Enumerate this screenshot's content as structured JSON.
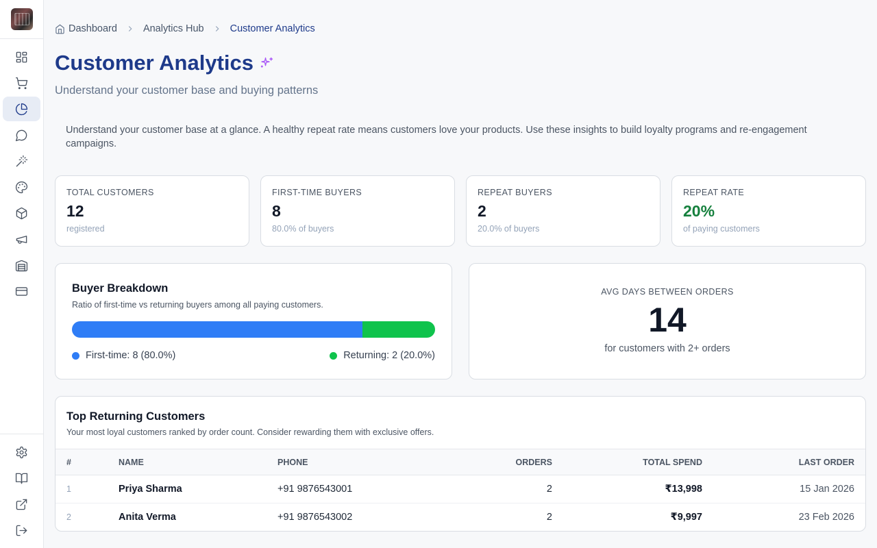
{
  "breadcrumb": {
    "items": [
      "Dashboard",
      "Analytics Hub"
    ],
    "current": "Customer Analytics"
  },
  "page": {
    "title": "Customer Analytics",
    "subtitle": "Understand your customer base and buying patterns",
    "info": "Understand your customer base at a glance. A healthy repeat rate means customers love your products. Use these insights to build loyalty programs and re-engagement campaigns."
  },
  "stats": [
    {
      "label": "Total Customers",
      "value": "12",
      "sub": "registered"
    },
    {
      "label": "First-Time Buyers",
      "value": "8",
      "sub": "80.0% of buyers"
    },
    {
      "label": "Repeat Buyers",
      "value": "2",
      "sub": "20.0% of buyers"
    },
    {
      "label": "Repeat Rate",
      "value": "20%",
      "sub": "of paying customers",
      "value_color": "#15803d"
    }
  ],
  "buyer_breakdown": {
    "title": "Buyer Breakdown",
    "description": "Ratio of first-time vs returning buyers among all paying customers.",
    "first_time_fraction": 0.8,
    "first_time_color": "#2f7df6",
    "returning_color": "#0fc34c",
    "legend_first": "First-time: 8 (80.0%)",
    "legend_returning": "Returning: 2 (20.0%)"
  },
  "avg_days": {
    "label": "Avg Days Between Orders",
    "value": "14",
    "sub": "for customers with 2+ orders"
  },
  "top_customers": {
    "title": "Top Returning Customers",
    "description": "Your most loyal customers ranked by order count. Consider rewarding them with exclusive offers.",
    "columns": [
      "#",
      "Name",
      "Phone",
      "Orders",
      "Total Spend",
      "Last Order"
    ],
    "rows": [
      {
        "idx": "1",
        "name": "Priya Sharma",
        "phone": "+91 9876543001",
        "orders": "2",
        "spend": "₹13,998",
        "last": "15 Jan 2026"
      },
      {
        "idx": "2",
        "name": "Anita Verma",
        "phone": "+91 9876543002",
        "orders": "2",
        "spend": "₹9,997",
        "last": "23 Feb 2026"
      }
    ]
  },
  "sidebar": {
    "active": "analytics",
    "items": [
      "dashboard-icon",
      "cart-icon",
      "pie-chart-icon",
      "message-icon",
      "magic-wand-icon",
      "palette-icon",
      "package-icon",
      "megaphone-icon",
      "warehouse-icon",
      "credit-card-icon"
    ],
    "bottom_items": [
      "settings-icon",
      "book-icon",
      "external-link-icon",
      "logout-icon"
    ]
  }
}
